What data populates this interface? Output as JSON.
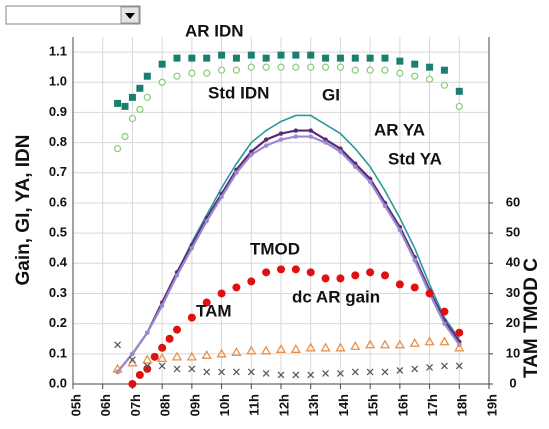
{
  "chart_data": {
    "type": "scatter",
    "y_label": "Gain, GI, YA, IDN",
    "y2_label": "TAM TMOD C",
    "xlim": [
      5,
      19
    ],
    "xticks": [
      {
        "value": 5,
        "label": "05h"
      },
      {
        "value": 6,
        "label": "06h"
      },
      {
        "value": 7,
        "label": "07h"
      },
      {
        "value": 8,
        "label": "08h"
      },
      {
        "value": 9,
        "label": "09h"
      },
      {
        "value": 10,
        "label": "10h"
      },
      {
        "value": 11,
        "label": "11h"
      },
      {
        "value": 12,
        "label": "12h"
      },
      {
        "value": 13,
        "label": "13h"
      },
      {
        "value": 14,
        "label": "14h"
      },
      {
        "value": 15,
        "label": "15h"
      },
      {
        "value": 16,
        "label": "16h"
      },
      {
        "value": 17,
        "label": "17h"
      },
      {
        "value": 18,
        "label": "18h"
      },
      {
        "value": 19,
        "label": "19h"
      }
    ],
    "ylim": [
      0,
      1.15
    ],
    "yticks": [
      {
        "value": 0,
        "label": "0.0"
      },
      {
        "value": 0.1,
        "label": "0.1"
      },
      {
        "value": 0.2,
        "label": "0.2"
      },
      {
        "value": 0.3,
        "label": "0.3"
      },
      {
        "value": 0.4,
        "label": "0.4"
      },
      {
        "value": 0.5,
        "label": "0.5"
      },
      {
        "value": 0.6,
        "label": "0.6"
      },
      {
        "value": 0.7,
        "label": "0.7"
      },
      {
        "value": 0.8,
        "label": "0.8"
      },
      {
        "value": 0.9,
        "label": "0.9"
      },
      {
        "value": 1,
        "label": "1.0"
      },
      {
        "value": 1.1,
        "label": "1.1"
      }
    ],
    "y2lim": [
      0,
      115
    ],
    "y2ticks": [
      0,
      10,
      20,
      30,
      40,
      50,
      60
    ],
    "grid": true,
    "series": [
      {
        "name": "AR IDN",
        "color": "#1b7f6e",
        "marker": "square",
        "x": [
          6.5,
          6.75,
          7,
          7.25,
          7.5,
          8,
          8.5,
          9,
          9.5,
          10,
          10.5,
          11,
          11.5,
          12,
          12.5,
          13,
          13.5,
          14,
          14.5,
          15,
          15.5,
          16,
          16.5,
          17,
          17.5,
          18
        ],
        "values": [
          0.93,
          0.92,
          0.95,
          0.98,
          1.02,
          1.06,
          1.08,
          1.08,
          1.08,
          1.09,
          1.08,
          1.09,
          1.08,
          1.09,
          1.09,
          1.09,
          1.08,
          1.08,
          1.08,
          1.08,
          1.08,
          1.07,
          1.06,
          1.05,
          1.04,
          0.97
        ]
      },
      {
        "name": "Std IDN",
        "color": "#8fcf7f",
        "marker": "circle",
        "x": [
          6.5,
          6.75,
          7,
          7.25,
          7.5,
          8,
          8.5,
          9,
          9.5,
          10,
          10.5,
          11,
          11.5,
          12,
          12.5,
          13,
          13.5,
          14,
          14.5,
          15,
          15.5,
          16,
          16.5,
          17,
          17.5,
          18
        ],
        "values": [
          0.78,
          0.82,
          0.88,
          0.91,
          0.95,
          1.0,
          1.02,
          1.03,
          1.03,
          1.04,
          1.04,
          1.05,
          1.05,
          1.05,
          1.05,
          1.05,
          1.05,
          1.05,
          1.04,
          1.04,
          1.04,
          1.03,
          1.02,
          1.01,
          0.99,
          0.92
        ]
      },
      {
        "name": "GI",
        "color": "#2a9a9a",
        "marker": "none",
        "x": [
          6.5,
          7,
          7.5,
          8,
          8.5,
          9,
          9.5,
          10,
          10.5,
          11,
          11.5,
          12,
          12.5,
          13,
          13.5,
          14,
          14.5,
          15,
          15.5,
          16,
          16.5,
          17,
          17.5,
          18
        ],
        "values": [
          0.04,
          0.1,
          0.17,
          0.27,
          0.37,
          0.47,
          0.56,
          0.65,
          0.73,
          0.8,
          0.84,
          0.87,
          0.89,
          0.89,
          0.86,
          0.83,
          0.78,
          0.72,
          0.64,
          0.55,
          0.45,
          0.33,
          0.22,
          0.15
        ]
      },
      {
        "name": "AR YA",
        "color": "#5a2a78",
        "marker": "dot",
        "x": [
          6.5,
          7,
          7.5,
          8,
          8.5,
          9,
          9.5,
          10,
          10.5,
          11,
          11.5,
          12,
          12.5,
          13,
          13.5,
          14,
          14.5,
          15,
          15.5,
          16,
          16.5,
          17,
          17.5,
          18
        ],
        "values": [
          0.04,
          0.1,
          0.17,
          0.27,
          0.37,
          0.46,
          0.55,
          0.63,
          0.71,
          0.77,
          0.81,
          0.83,
          0.84,
          0.84,
          0.81,
          0.78,
          0.73,
          0.68,
          0.6,
          0.52,
          0.42,
          0.31,
          0.21,
          0.14
        ]
      },
      {
        "name": "Std YA",
        "color": "#9a8ad0",
        "marker": "dot",
        "x": [
          6.5,
          7,
          7.5,
          8,
          8.5,
          9,
          9.5,
          10,
          10.5,
          11,
          11.5,
          12,
          12.5,
          13,
          13.5,
          14,
          14.5,
          15,
          15.5,
          16,
          16.5,
          17,
          17.5,
          18
        ],
        "values": [
          0.04,
          0.1,
          0.17,
          0.26,
          0.36,
          0.45,
          0.54,
          0.62,
          0.7,
          0.76,
          0.79,
          0.81,
          0.82,
          0.82,
          0.8,
          0.77,
          0.72,
          0.67,
          0.59,
          0.51,
          0.41,
          0.3,
          0.2,
          0.13
        ]
      },
      {
        "name": "TMOD",
        "color": "#e01010",
        "marker": "bigdot",
        "axis": "y2",
        "x": [
          7,
          7.25,
          7.5,
          7.75,
          8,
          8.25,
          8.5,
          9,
          9.5,
          10,
          10.5,
          11,
          11.5,
          12,
          12.5,
          13,
          13.5,
          14,
          14.5,
          15,
          15.5,
          16,
          16.5,
          17,
          17.5,
          18
        ],
        "values": [
          0,
          3,
          5,
          9,
          12,
          15,
          18,
          22,
          27,
          30,
          32,
          34,
          37,
          38,
          38,
          37,
          35,
          35,
          36,
          37,
          36,
          33,
          32,
          30,
          24,
          17
        ]
      },
      {
        "name": "TAM",
        "color": "#e8904a",
        "marker": "triangle",
        "axis": "y2",
        "x": [
          6.5,
          7,
          7.5,
          8,
          8.5,
          9,
          9.5,
          10,
          10.5,
          11,
          11.5,
          12,
          12.5,
          13,
          13.5,
          14,
          14.5,
          15,
          15.5,
          16,
          16.5,
          17,
          17.5,
          18
        ],
        "values": [
          5,
          7,
          8,
          8.5,
          9,
          9,
          9.5,
          10,
          10.5,
          11,
          11,
          11.5,
          11.5,
          12,
          12,
          12,
          12.5,
          13,
          13,
          13,
          13.5,
          14,
          14,
          12
        ]
      },
      {
        "name": "dc AR gain",
        "color": "#555555",
        "marker": "cross",
        "x": [
          6.5,
          7,
          7.5,
          8,
          8.5,
          9,
          9.5,
          10,
          10.5,
          11,
          11.5,
          12,
          12.5,
          13,
          13.5,
          14,
          14.5,
          15,
          15.5,
          16,
          16.5,
          17,
          17.5,
          18
        ],
        "values": [
          0.13,
          0.08,
          0.06,
          0.06,
          0.05,
          0.05,
          0.04,
          0.04,
          0.04,
          0.04,
          0.035,
          0.03,
          0.03,
          0.03,
          0.035,
          0.035,
          0.04,
          0.04,
          0.04,
          0.045,
          0.05,
          0.055,
          0.06,
          0.06
        ]
      }
    ]
  }
}
